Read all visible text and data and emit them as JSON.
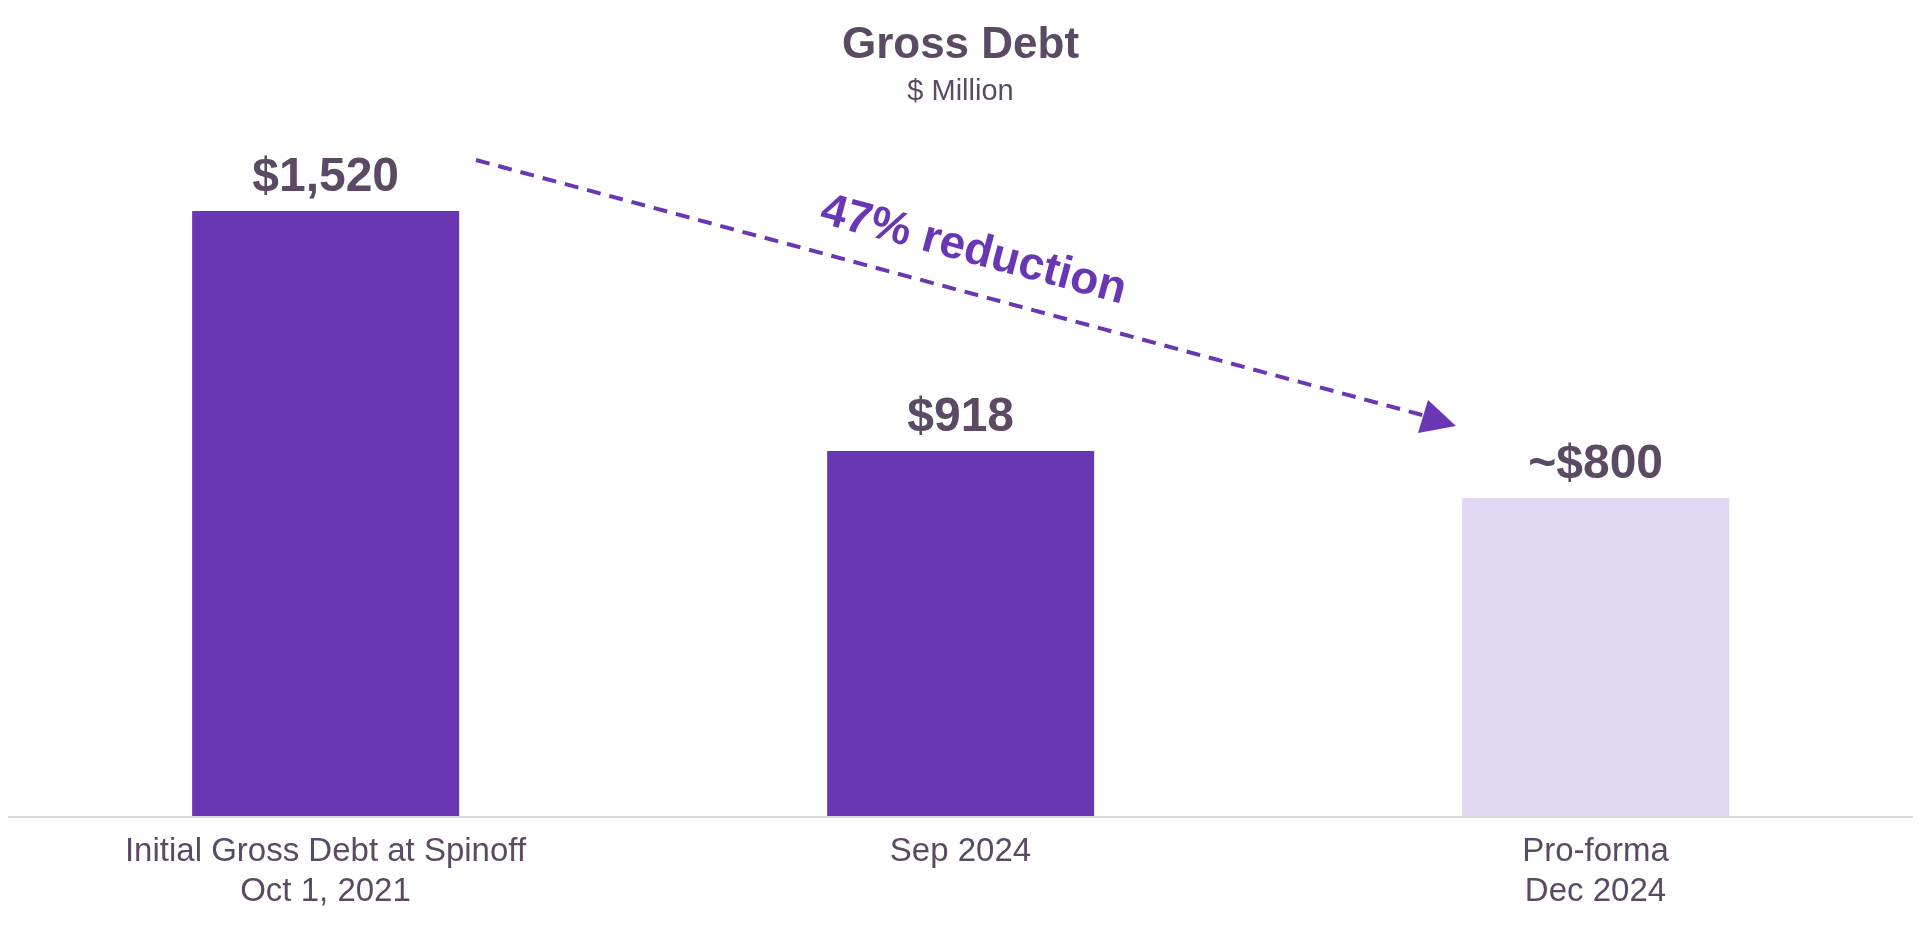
{
  "chart_data": {
    "type": "bar",
    "title": "Gross Debt",
    "subtitle": "$ Million",
    "categories": [
      "Initial Gross Debt at Spinoff\nOct 1, 2021",
      "Sep 2024",
      "Pro-forma\nDec 2024"
    ],
    "values": [
      1520,
      918,
      800
    ],
    "colors": [
      "#6a37b4",
      "#6a37b4",
      "#e0d7f3"
    ],
    "value_labels": [
      "$1,520",
      "$918",
      "~$800"
    ],
    "annotations": [
      "47% reduction"
    ],
    "relative": false
  }
}
